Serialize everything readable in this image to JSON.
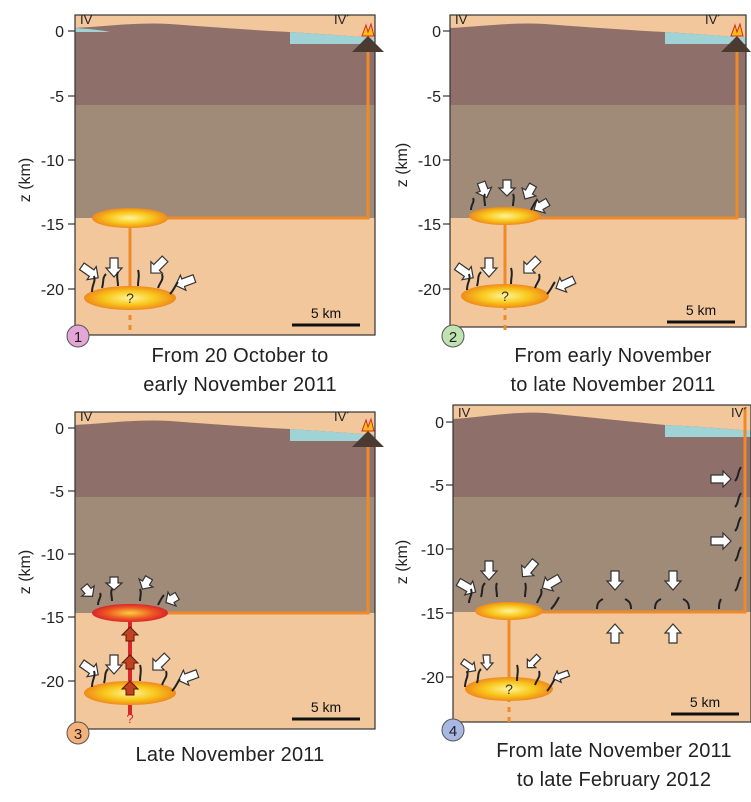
{
  "axis": {
    "ylabel": "z (km)",
    "ticks": [
      "0",
      "-5",
      "-10",
      "-15",
      "-20"
    ],
    "section_left": "IV",
    "section_right": "IV´",
    "scalebar": "5 km",
    "unknown_mark": "?"
  },
  "panels": [
    {
      "number": "1",
      "caption_line1": "From 20 October to",
      "caption_line2": "early November 2011",
      "badge_color": "#e3a6d6"
    },
    {
      "number": "2",
      "caption_line1": "From early November",
      "caption_line2": "to late November  2011",
      "badge_color": "#bfe3b0"
    },
    {
      "number": "3",
      "caption_line1": "Late November  2011",
      "caption_line2": "",
      "badge_color": "#f4b27a"
    },
    {
      "number": "4",
      "caption_line1": "From late November 2011",
      "caption_line2": "to late February  2012",
      "badge_color": "#a9b8e3"
    }
  ],
  "colors": {
    "sea": "#9fd3d6",
    "upper_crust": "#8f6f6a",
    "middle_crust": "#a08a78",
    "lower_crust": "#f2c79b",
    "conduit": "#ee8a2a",
    "reservoir": "#f6c012",
    "melt_path": "#d8262a"
  }
}
